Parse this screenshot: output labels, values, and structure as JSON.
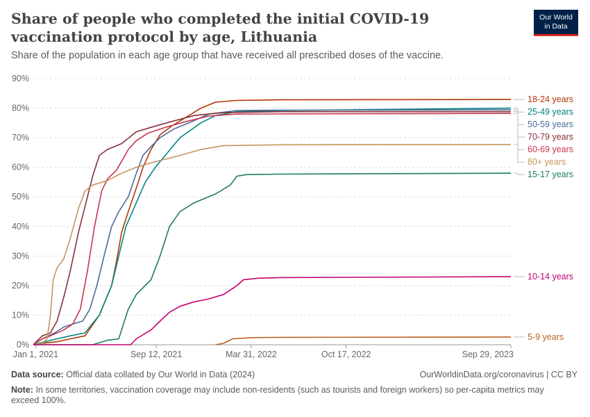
{
  "header": {
    "title": "Share of people who completed the initial COVID-19 vaccination protocol by age, Lithuania",
    "subtitle": "Share of the population in each age group that have received all prescribed doses of the vaccine.",
    "logo_line1": "Our World",
    "logo_line2": "in Data"
  },
  "footer": {
    "source_label": "Data source:",
    "source_text": "Official data collated by Our World in Data (2024)",
    "rights": "OurWorldinData.org/coronavirus | CC BY",
    "note_label": "Note:",
    "note_text": "In some territories, vaccination coverage may include non-residents (such as tourists and foreign workers) so per-capita metrics may exceed 100%."
  },
  "chart_data": {
    "type": "line",
    "title": "Share of people who completed the initial COVID-19 vaccination protocol by age, Lithuania",
    "x_ticks": [
      "Jan 1, 2021",
      "Sep 12, 2021",
      "Mar 31, 2022",
      "Oct 17, 2022",
      "Sep 29, 2023"
    ],
    "y_ticks": [
      "0%",
      "10%",
      "20%",
      "30%",
      "40%",
      "50%",
      "60%",
      "70%",
      "80%",
      "90%"
    ],
    "xlim": [
      "2020-12-27",
      "2023-09-29"
    ],
    "ylim": [
      0,
      90
    ],
    "grid": "horizontal dashed",
    "legend": "right, labels at line ends",
    "series": [
      {
        "name": "18-24 years",
        "color": "#b13507",
        "points": [
          [
            "2020-12-27",
            0
          ],
          [
            "2021-01-15",
            0.5
          ],
          [
            "2021-02-15",
            1
          ],
          [
            "2021-03-15",
            2
          ],
          [
            "2021-04-15",
            3
          ],
          [
            "2021-05-15",
            10
          ],
          [
            "2021-06-10",
            20
          ],
          [
            "2021-06-20",
            28
          ],
          [
            "2021-07-01",
            38
          ],
          [
            "2021-07-15",
            45
          ],
          [
            "2021-08-01",
            53
          ],
          [
            "2021-08-15",
            60
          ],
          [
            "2021-09-01",
            66
          ],
          [
            "2021-09-20",
            71
          ],
          [
            "2021-10-15",
            74
          ],
          [
            "2021-11-15",
            77
          ],
          [
            "2021-12-15",
            80
          ],
          [
            "2022-01-15",
            82
          ],
          [
            "2022-03-01",
            82.6
          ],
          [
            "2022-06-01",
            82.8
          ],
          [
            "2023-09-29",
            82.9
          ]
        ]
      },
      {
        "name": "25-49 years",
        "color": "#00847e",
        "points": [
          [
            "2020-12-27",
            0
          ],
          [
            "2021-01-15",
            0.8
          ],
          [
            "2021-02-15",
            2
          ],
          [
            "2021-03-15",
            3
          ],
          [
            "2021-04-15",
            4
          ],
          [
            "2021-05-15",
            10
          ],
          [
            "2021-06-10",
            20
          ],
          [
            "2021-06-25",
            30
          ],
          [
            "2021-07-10",
            40
          ],
          [
            "2021-08-01",
            48
          ],
          [
            "2021-08-20",
            55
          ],
          [
            "2021-09-10",
            60
          ],
          [
            "2021-10-01",
            64
          ],
          [
            "2021-11-01",
            70
          ],
          [
            "2021-12-15",
            75
          ],
          [
            "2022-01-15",
            77.5
          ],
          [
            "2022-03-01",
            78.8
          ],
          [
            "2022-06-01",
            79.2
          ],
          [
            "2023-09-29",
            80
          ]
        ]
      },
      {
        "name": "50-59 years",
        "color": "#4c6a9c",
        "points": [
          [
            "2020-12-27",
            0
          ],
          [
            "2021-01-15",
            2
          ],
          [
            "2021-02-10",
            4
          ],
          [
            "2021-03-01",
            6
          ],
          [
            "2021-03-20",
            7
          ],
          [
            "2021-04-10",
            8
          ],
          [
            "2021-04-25",
            12
          ],
          [
            "2021-05-10",
            20
          ],
          [
            "2021-05-25",
            30
          ],
          [
            "2021-06-10",
            40
          ],
          [
            "2021-06-25",
            45
          ],
          [
            "2021-07-15",
            50
          ],
          [
            "2021-08-01",
            58
          ],
          [
            "2021-08-15",
            64
          ],
          [
            "2021-09-01",
            67
          ],
          [
            "2021-09-20",
            70
          ],
          [
            "2021-10-20",
            73
          ],
          [
            "2021-11-20",
            75
          ],
          [
            "2022-01-01",
            78
          ],
          [
            "2022-03-01",
            79.2
          ],
          [
            "2022-06-01",
            79.3
          ],
          [
            "2023-09-29",
            79.4
          ]
        ]
      },
      {
        "name": "70-79 years",
        "color": "#883039",
        "points": [
          [
            "2020-12-27",
            0
          ],
          [
            "2021-01-15",
            3
          ],
          [
            "2021-02-01",
            4
          ],
          [
            "2021-02-15",
            8
          ],
          [
            "2021-03-01",
            16
          ],
          [
            "2021-03-15",
            25
          ],
          [
            "2021-04-01",
            38
          ],
          [
            "2021-04-20",
            50
          ],
          [
            "2021-05-01",
            57
          ],
          [
            "2021-05-15",
            64
          ],
          [
            "2021-06-01",
            66
          ],
          [
            "2021-07-01",
            68
          ],
          [
            "2021-08-01",
            72
          ],
          [
            "2021-09-01",
            73.5
          ],
          [
            "2021-10-15",
            75.5
          ],
          [
            "2021-12-01",
            77.5
          ],
          [
            "2022-02-01",
            78.5
          ],
          [
            "2022-06-01",
            78.8
          ],
          [
            "2023-09-29",
            78.8
          ]
        ]
      },
      {
        "name": "60-69 years",
        "color": "#c7354d",
        "points": [
          [
            "2020-12-27",
            0
          ],
          [
            "2021-01-15",
            2
          ],
          [
            "2021-02-01",
            3
          ],
          [
            "2021-03-01",
            5
          ],
          [
            "2021-03-20",
            7
          ],
          [
            "2021-04-05",
            12
          ],
          [
            "2021-04-20",
            25
          ],
          [
            "2021-05-05",
            40
          ],
          [
            "2021-05-20",
            52
          ],
          [
            "2021-06-01",
            56
          ],
          [
            "2021-06-20",
            59
          ],
          [
            "2021-07-01",
            62
          ],
          [
            "2021-07-15",
            66
          ],
          [
            "2021-08-01",
            69
          ],
          [
            "2021-08-25",
            71.5
          ],
          [
            "2021-10-01",
            73.5
          ],
          [
            "2021-11-15",
            75.5
          ],
          [
            "2022-01-01",
            77.3
          ],
          [
            "2022-03-01",
            78
          ],
          [
            "2023-09-29",
            78.2
          ]
        ]
      },
      {
        "name": "80+ years",
        "color": "#c5945e",
        "points": [
          [
            "2020-12-27",
            0
          ],
          [
            "2021-01-15",
            0.5
          ],
          [
            "2021-01-25",
            2
          ],
          [
            "2021-02-01",
            10
          ],
          [
            "2021-02-07",
            22
          ],
          [
            "2021-02-15",
            26
          ],
          [
            "2021-03-01",
            29
          ],
          [
            "2021-03-15",
            36
          ],
          [
            "2021-04-01",
            46
          ],
          [
            "2021-04-15",
            52
          ],
          [
            "2021-05-01",
            54
          ],
          [
            "2021-06-01",
            55.5
          ],
          [
            "2021-07-01",
            58
          ],
          [
            "2021-08-01",
            60
          ],
          [
            "2021-09-01",
            61.5
          ],
          [
            "2021-11-01",
            64
          ],
          [
            "2021-12-15",
            66
          ],
          [
            "2022-02-01",
            67.3
          ],
          [
            "2022-06-01",
            67.6
          ],
          [
            "2023-09-29",
            67.7
          ]
        ]
      },
      {
        "name": "15-17 years",
        "color": "#1b7d58",
        "points": [
          [
            "2020-12-27",
            0
          ],
          [
            "2021-05-01",
            0
          ],
          [
            "2021-06-01",
            1.5
          ],
          [
            "2021-06-25",
            2
          ],
          [
            "2021-07-05",
            7
          ],
          [
            "2021-07-15",
            12
          ],
          [
            "2021-08-01",
            17
          ],
          [
            "2021-09-01",
            22
          ],
          [
            "2021-09-20",
            30
          ],
          [
            "2021-10-10",
            40
          ],
          [
            "2021-11-01",
            45
          ],
          [
            "2021-12-01",
            48
          ],
          [
            "2022-01-15",
            51
          ],
          [
            "2022-02-15",
            54
          ],
          [
            "2022-03-01",
            57
          ],
          [
            "2022-03-20",
            57.5
          ],
          [
            "2022-06-01",
            57.7
          ],
          [
            "2023-09-29",
            58
          ]
        ]
      },
      {
        "name": "10-14 years",
        "color": "#c4006f",
        "points": [
          [
            "2020-12-27",
            0
          ],
          [
            "2021-07-20",
            0
          ],
          [
            "2021-08-01",
            2
          ],
          [
            "2021-09-01",
            5
          ],
          [
            "2021-09-20",
            8
          ],
          [
            "2021-10-10",
            11
          ],
          [
            "2021-11-01",
            13
          ],
          [
            "2021-12-01",
            14.5
          ],
          [
            "2022-01-01",
            15.5
          ],
          [
            "2022-02-01",
            17
          ],
          [
            "2022-03-01",
            20
          ],
          [
            "2022-03-15",
            22
          ],
          [
            "2022-04-15",
            22.5
          ],
          [
            "2022-06-01",
            22.7
          ],
          [
            "2023-09-29",
            23
          ]
        ]
      },
      {
        "name": "5-9 years",
        "color": "#bb6020",
        "points": [
          [
            "2022-01-15",
            0
          ],
          [
            "2022-02-01",
            0.5
          ],
          [
            "2022-02-20",
            2
          ],
          [
            "2022-04-01",
            2.4
          ],
          [
            "2022-06-01",
            2.5
          ],
          [
            "2023-09-29",
            2.6
          ]
        ]
      }
    ]
  }
}
